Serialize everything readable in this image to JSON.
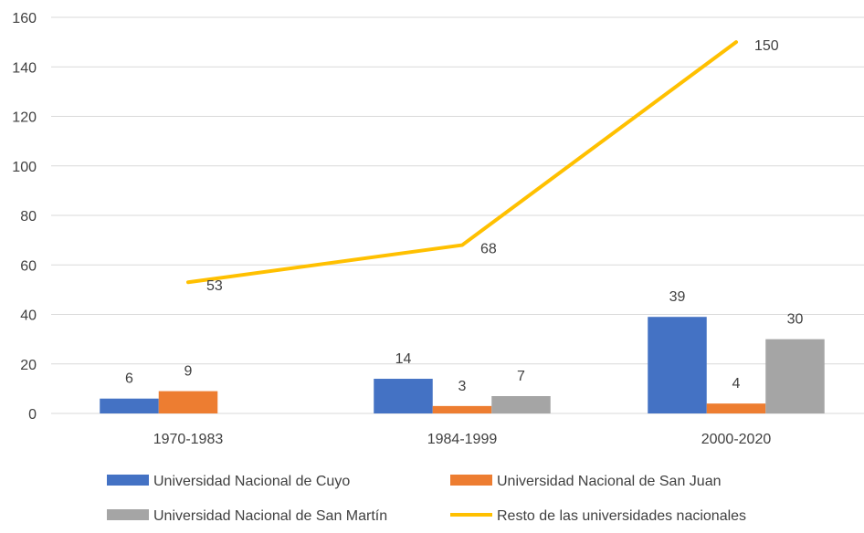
{
  "chart_data": {
    "type": "bar",
    "title": "",
    "xlabel": "",
    "ylabel": "",
    "ylim": [
      0,
      160
    ],
    "yticks": [
      0,
      20,
      40,
      60,
      80,
      100,
      120,
      140,
      160
    ],
    "grid": true,
    "legend_position": "bottom",
    "categories": [
      "1970-1983",
      "1984-1999",
      "2000-2020"
    ],
    "series": [
      {
        "name": "Universidad Nacional de Cuyo",
        "kind": "bar",
        "color": "#4472C4",
        "values": [
          6,
          14,
          39
        ]
      },
      {
        "name": "Universidad Nacional de San Juan",
        "kind": "bar",
        "color": "#ED7D31",
        "values": [
          9,
          3,
          4
        ]
      },
      {
        "name": "Universidad Nacional de San Martín",
        "kind": "bar",
        "color": "#A5A5A5",
        "values": [
          null,
          7,
          30
        ]
      },
      {
        "name": "Resto de las universidades nacionales",
        "kind": "line",
        "color": "#FFC000",
        "values": [
          53,
          68,
          150
        ]
      }
    ]
  }
}
